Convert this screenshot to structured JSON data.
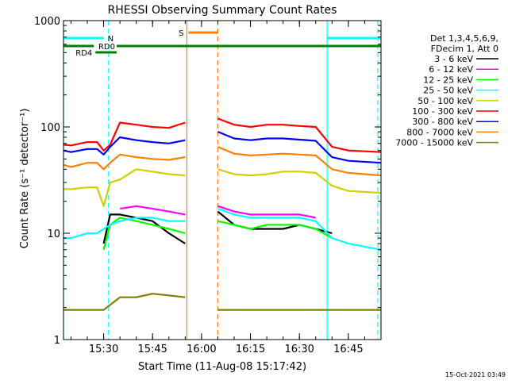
{
  "chart_data": {
    "type": "line",
    "title": "RHESSI Observing Summary Count Rates",
    "xlabel": "Start Time (11-Aug-08 15:17:42)",
    "ylabel": "Count Rate (s⁻¹ detector⁻¹)",
    "y_scale": "log",
    "ylim": [
      1,
      1000
    ],
    "xlim": [
      "15:17:42",
      "16:55:00"
    ],
    "x_ticks": [
      "15:30",
      "15:45",
      "16:00",
      "16:15",
      "16:30",
      "16:45"
    ],
    "y_ticks": [
      "1",
      "10",
      "100",
      "1000"
    ],
    "grid": false,
    "legend_position": "right",
    "legend_header": [
      "Det 1,3,4,5,6,9,",
      "FDecim 1, Att 0"
    ],
    "footer_text": "15-Oct-2021 03:49",
    "series": [
      {
        "name": "3 - 6 keV",
        "color": "#000000",
        "x": [
          "15:17:42",
          "15:28",
          "15:30",
          "15:32",
          "15:35",
          "15:40",
          "15:45",
          "15:50",
          "15:55",
          "15:56",
          "16:00",
          "16:03",
          "16:05",
          "16:10",
          "16:15",
          "16:20",
          "16:25",
          "16:30",
          "16:35",
          "16:40",
          "16:45",
          "16:55"
        ],
        "y": [
          null,
          null,
          8,
          15,
          15,
          14,
          13,
          10,
          8,
          null,
          null,
          null,
          16,
          12,
          11,
          11,
          11,
          12,
          11,
          10,
          null,
          null
        ]
      },
      {
        "name": "6 - 12 keV",
        "color": "#ff00ff",
        "x": [
          "15:17:42",
          "15:28",
          "15:30",
          "15:32",
          "15:35",
          "15:40",
          "15:45",
          "15:50",
          "15:55",
          "15:56",
          "16:00",
          "16:03",
          "16:05",
          "16:10",
          "16:15",
          "16:20",
          "16:25",
          "16:30",
          "16:35",
          "16:40",
          "16:45",
          "16:55"
        ],
        "y": [
          null,
          null,
          null,
          null,
          17,
          18,
          17,
          16,
          15,
          null,
          null,
          null,
          18,
          16,
          15,
          15,
          15,
          15,
          14,
          null,
          null,
          null
        ]
      },
      {
        "name": "12 - 25 keV",
        "color": "#00ff00",
        "x": [
          "15:17:42",
          "15:28",
          "15:30",
          "15:32",
          "15:35",
          "15:40",
          "15:45",
          "15:50",
          "15:55",
          "15:56",
          "16:00",
          "16:03",
          "16:05",
          "16:10",
          "16:15",
          "16:20",
          "16:25",
          "16:30",
          "16:35",
          "16:40",
          "16:45",
          "16:55"
        ],
        "y": [
          null,
          null,
          7,
          12,
          14,
          13,
          12,
          11,
          10,
          null,
          null,
          null,
          13,
          12,
          11,
          12,
          12,
          12,
          11,
          9,
          null,
          null
        ]
      },
      {
        "name": "25 - 50 keV",
        "color": "#00ffff",
        "x": [
          "15:17:42",
          "15:20",
          "15:25",
          "15:28",
          "15:30",
          "15:32",
          "15:35",
          "15:40",
          "15:45",
          "15:50",
          "15:55",
          "15:56",
          "16:00",
          "16:03",
          "16:05",
          "16:10",
          "16:15",
          "16:20",
          "16:25",
          "16:30",
          "16:35",
          "16:40",
          "16:45",
          "16:55"
        ],
        "y": [
          9,
          9,
          10,
          10,
          11,
          12,
          13,
          14,
          14,
          13,
          13,
          null,
          null,
          null,
          17,
          15,
          14,
          14,
          14,
          14,
          13,
          9,
          8,
          7
        ]
      },
      {
        "name": "50 - 100 keV",
        "color": "#d0d000",
        "x": [
          "15:17:42",
          "15:20",
          "15:25",
          "15:28",
          "15:30",
          "15:32",
          "15:35",
          "15:40",
          "15:45",
          "15:50",
          "15:55",
          "15:56",
          "16:00",
          "16:03",
          "16:05",
          "16:10",
          "16:15",
          "16:20",
          "16:25",
          "16:30",
          "16:35",
          "16:40",
          "16:45",
          "16:55"
        ],
        "y": [
          26,
          26,
          27,
          27,
          18,
          30,
          32,
          40,
          38,
          36,
          35,
          null,
          null,
          null,
          40,
          36,
          35,
          36,
          38,
          38,
          37,
          28,
          25,
          24
        ]
      },
      {
        "name": "100 - 300 keV",
        "color": "#ff0000",
        "x": [
          "15:17:42",
          "15:20",
          "15:25",
          "15:28",
          "15:30",
          "15:32",
          "15:35",
          "15:40",
          "15:45",
          "15:50",
          "15:55",
          "15:56",
          "16:00",
          "16:03",
          "16:05",
          "16:10",
          "16:15",
          "16:20",
          "16:25",
          "16:30",
          "16:35",
          "16:40",
          "16:45",
          "16:55"
        ],
        "y": [
          68,
          67,
          72,
          72,
          60,
          68,
          110,
          105,
          100,
          98,
          110,
          null,
          null,
          null,
          120,
          105,
          100,
          105,
          105,
          102,
          100,
          65,
          60,
          58
        ]
      },
      {
        "name": "300 - 800 keV",
        "color": "#0000ff",
        "x": [
          "15:17:42",
          "15:20",
          "15:25",
          "15:28",
          "15:30",
          "15:32",
          "15:35",
          "15:40",
          "15:45",
          "15:50",
          "15:55",
          "15:56",
          "16:00",
          "16:03",
          "16:05",
          "16:10",
          "16:15",
          "16:20",
          "16:25",
          "16:30",
          "16:35",
          "16:40",
          "16:45",
          "16:55"
        ],
        "y": [
          60,
          58,
          62,
          62,
          55,
          65,
          80,
          75,
          72,
          70,
          75,
          null,
          null,
          null,
          90,
          78,
          75,
          78,
          78,
          76,
          74,
          52,
          48,
          46
        ]
      },
      {
        "name": "800 - 7000 keV",
        "color": "#ff8000",
        "x": [
          "15:17:42",
          "15:20",
          "15:25",
          "15:28",
          "15:30",
          "15:32",
          "15:35",
          "15:40",
          "15:45",
          "15:50",
          "15:55",
          "15:56",
          "16:00",
          "16:03",
          "16:05",
          "16:10",
          "16:15",
          "16:20",
          "16:25",
          "16:30",
          "16:35",
          "16:40",
          "16:45",
          "16:55"
        ],
        "y": [
          44,
          42,
          46,
          46,
          40,
          46,
          55,
          52,
          50,
          49,
          52,
          null,
          null,
          null,
          65,
          56,
          54,
          55,
          56,
          55,
          54,
          40,
          37,
          35
        ]
      },
      {
        "name": "7000 - 15000 keV",
        "color": "#808000",
        "x": [
          "15:17:42",
          "15:25",
          "15:30",
          "15:35",
          "15:40",
          "15:45",
          "15:50",
          "15:55",
          "15:56",
          "16:00",
          "16:03",
          "16:05",
          "16:10",
          "16:15",
          "16:20",
          "16:25",
          "16:30",
          "16:35",
          "16:40",
          "16:45",
          "16:55"
        ],
        "y": [
          1.9,
          1.9,
          1.9,
          2.5,
          2.5,
          2.7,
          2.6,
          2.5,
          null,
          null,
          null,
          1.9,
          1.9,
          1.9,
          1.9,
          1.9,
          1.9,
          1.9,
          1.9,
          1.9,
          1.9
        ]
      }
    ],
    "annotations": {
      "vertical_lines": [
        {
          "time": "15:17:42",
          "color": "#00ffff",
          "style": "solid"
        },
        {
          "time": "15:31:30",
          "color": "#00ffff",
          "style": "dashed"
        },
        {
          "time": "15:55:30",
          "color": "#ff8000",
          "style": "solid"
        },
        {
          "time": "16:05:00",
          "color": "#ff8000",
          "style": "dashed"
        },
        {
          "time": "16:38:30",
          "color": "#00ffff",
          "style": "solid"
        },
        {
          "time": "16:54:00",
          "color": "#00ffff",
          "style": "dashed"
        }
      ],
      "status_bars": [
        {
          "label": "N",
          "color": "#00ffff",
          "segments": [
            [
              "15:17:42",
              "15:30:00"
            ],
            [
              "16:38:30",
              "16:55:00"
            ]
          ]
        },
        {
          "label": "S",
          "color": "#ff8000",
          "segments": [
            [
              "15:56:00",
              "16:05:00"
            ]
          ]
        },
        {
          "label": "RD0",
          "color": "#008000",
          "segments": [
            [
              "15:17:42",
              "15:27:00"
            ],
            [
              "15:34:00",
              "16:55:00"
            ]
          ]
        },
        {
          "label": "RD4",
          "color": "#008000",
          "segments": [
            [
              "15:27:30",
              "15:34:00"
            ]
          ]
        }
      ]
    }
  }
}
